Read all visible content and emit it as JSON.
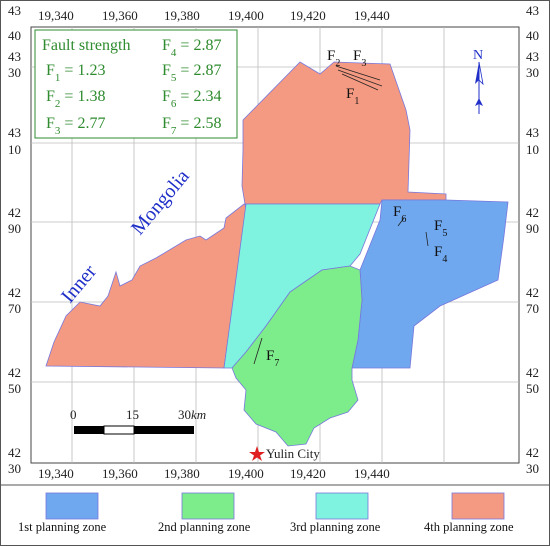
{
  "map": {
    "top_ticks": [
      "19,340",
      "19,360",
      "19,380",
      "19,400",
      "19,420",
      "19,440"
    ],
    "bottom_ticks": [
      "19,340",
      "19,360",
      "19,380",
      "19,400",
      "19,420",
      "19,440"
    ],
    "left_ticks": [
      {
        "hi": "43",
        "lo": "40"
      },
      {
        "hi": "43",
        "lo": "30"
      },
      {
        "hi": "43",
        "lo": "10"
      },
      {
        "hi": "42",
        "lo": "90"
      },
      {
        "hi": "42",
        "lo": "70"
      },
      {
        "hi": "42",
        "lo": "50"
      },
      {
        "hi": "42",
        "lo": "30"
      }
    ],
    "right_ticks": [
      {
        "hi": "43",
        "lo": "40"
      },
      {
        "hi": "43",
        "lo": "30"
      },
      {
        "hi": "43",
        "lo": "10"
      },
      {
        "hi": "42",
        "lo": "90"
      },
      {
        "hi": "42",
        "lo": "70"
      },
      {
        "hi": "42",
        "lo": "50"
      },
      {
        "hi": "42",
        "lo": "30"
      }
    ],
    "region_label_1": "Inner",
    "region_label_2": "Mongolia",
    "city_label": "Yulin City",
    "north_label": "N",
    "scale": {
      "t0": "0",
      "t1": "15",
      "t2": "30",
      "unit": "km"
    },
    "faults": {
      "f1": "F1",
      "f2": "F2",
      "f3": "F3",
      "f4": "F4",
      "f5": "F5",
      "f6": "F6",
      "f7": "F7"
    }
  },
  "strength_box": {
    "title": "Fault strength",
    "rows": [
      {
        "name": "F1",
        "value": "1.23"
      },
      {
        "name": "F2",
        "value": "1.38"
      },
      {
        "name": "F3",
        "value": "2.77"
      },
      {
        "name": "F4",
        "value": "2.87"
      },
      {
        "name": "F5",
        "value": "2.87"
      },
      {
        "name": "F6",
        "value": "2.34"
      },
      {
        "name": "F7",
        "value": "2.58"
      }
    ]
  },
  "legend": [
    {
      "label": "1st planning zone",
      "color": "#6fa8ef"
    },
    {
      "label": "2nd planning zone",
      "color": "#7ded8c"
    },
    {
      "label": "3rd planning zone",
      "color": "#7ff3df"
    },
    {
      "label": "4th planning zone",
      "color": "#f49a82"
    }
  ],
  "colors": {
    "zone1": "#6fa8ef",
    "zone2": "#7ded8c",
    "zone3": "#7ff3df",
    "zone4": "#f49a82",
    "outline": "#7777dd",
    "label_blue": "#1f2fc8",
    "strength_green": "#2e8b2e"
  }
}
